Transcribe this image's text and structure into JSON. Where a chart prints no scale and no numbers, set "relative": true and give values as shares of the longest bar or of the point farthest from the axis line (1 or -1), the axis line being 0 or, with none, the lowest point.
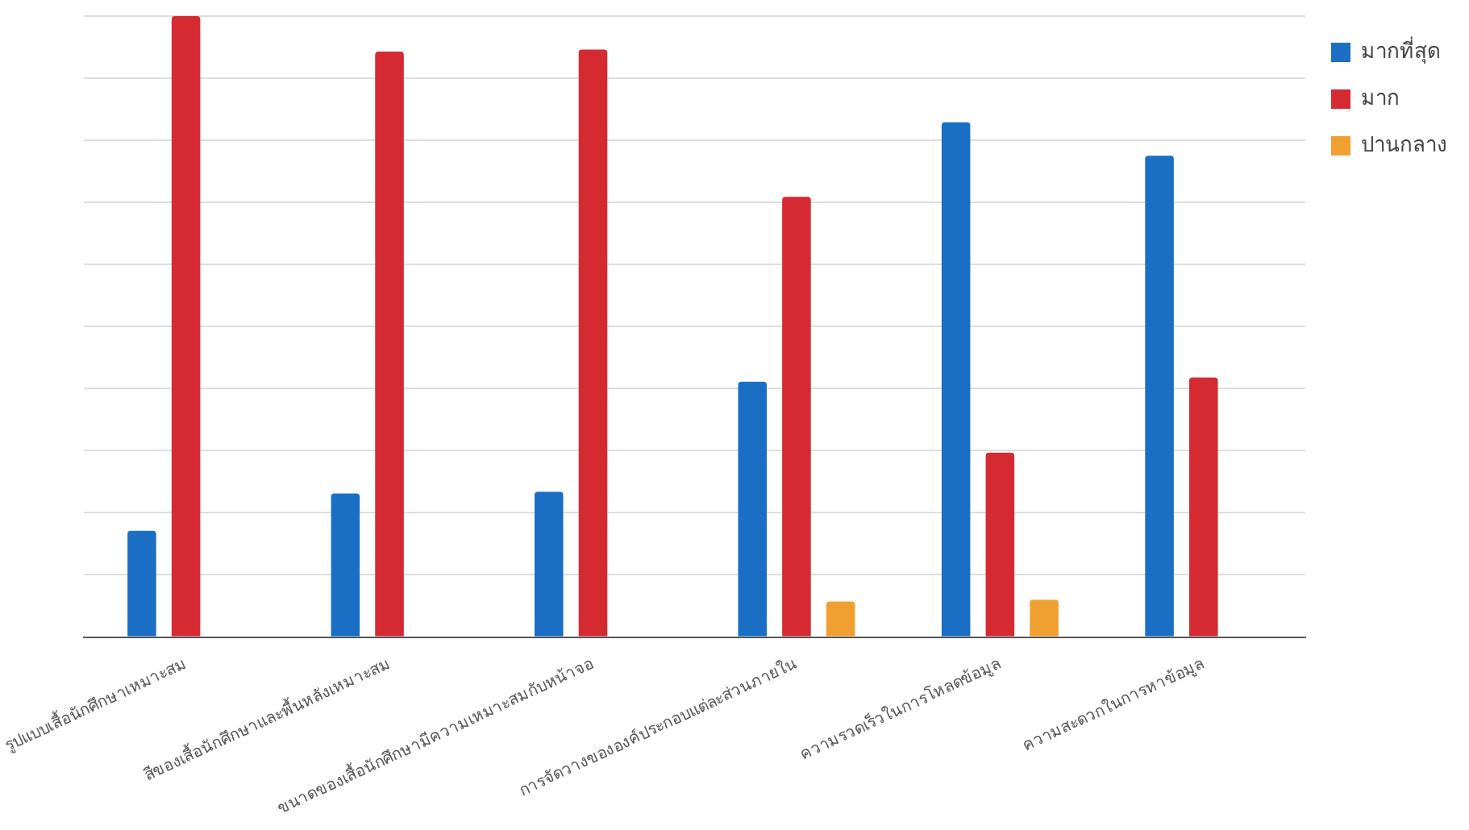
{
  "chart_data": {
    "type": "bar",
    "relative": true,
    "categories": [
      "รูปแบบเสื้อนักศึกษาเหมาะสม",
      "สีของเสื้อนักศึกษาและพื้นหลังเหมาะสม",
      "ขนาดของเสื้อนักศึกษามีความเหมาะสมกับหน้าจอ",
      "การจัดวางขององค์ประกอบแต่ละส่วนภายใน",
      "ความรวดเร็วในการโหลดข้อมูล",
      "ความสะดวกในการหาข้อมูล"
    ],
    "series": [
      {
        "name": "มากที่สุด",
        "color": "#1a6fc4",
        "values": [
          0.171,
          0.231,
          0.234,
          0.411,
          0.829,
          0.775
        ]
      },
      {
        "name": "มาก",
        "color": "#d62a33",
        "values": [
          1,
          0.943,
          0.946,
          0.709,
          0.297,
          0.418
        ]
      },
      {
        "name": "ปานกลาง",
        "color": "#f0a030",
        "values": [
          0,
          0,
          0,
          0.057,
          0.06,
          0
        ]
      }
    ],
    "grid": "y",
    "legend": "top right"
  }
}
